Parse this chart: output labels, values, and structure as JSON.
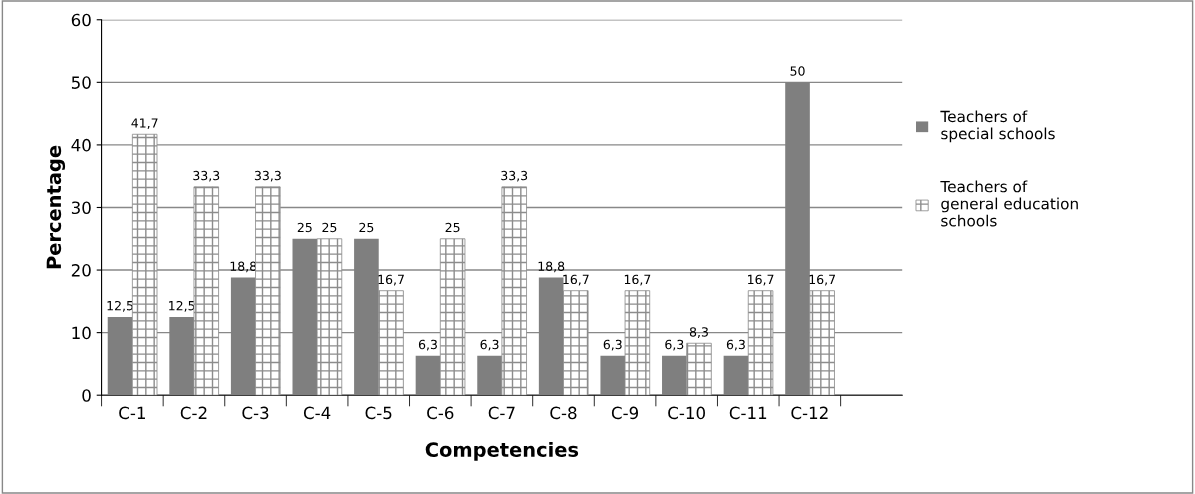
{
  "chart_data": {
    "type": "bar",
    "xlabel": "Competencies",
    "ylabel": "Percentage",
    "categories": [
      "C-1",
      "C-2",
      "C-3",
      "C-4",
      "C-5",
      "C-6",
      "C-7",
      "C-8",
      "C-9",
      "C-10",
      "C-11",
      "C-12"
    ],
    "series": [
      {
        "name": "Teachers of special schools",
        "color": "#7f7f7f",
        "values": [
          12.5,
          12.5,
          18.8,
          25,
          25,
          6.3,
          6.3,
          18.8,
          6.3,
          6.3,
          6.3,
          50
        ],
        "value_labels": [
          "12,5",
          "12,5",
          "18,8",
          "25",
          "25",
          "6,3",
          "6,3",
          "18,8",
          "6,3",
          "6,3",
          "6,3",
          "50"
        ]
      },
      {
        "name": "Teachers of general education schools",
        "color": "#8c8c8c",
        "values": [
          41.7,
          33.3,
          33.3,
          25,
          16.7,
          25,
          33.3,
          16.7,
          16.7,
          8.3,
          16.7,
          16.7
        ],
        "value_labels": [
          "41,7",
          "33,3",
          "33,3",
          "25",
          "16,7",
          "25",
          "33,3",
          "16,7",
          "16,7",
          "8,3",
          "16,7",
          "16,7"
        ]
      }
    ],
    "ylim": [
      0,
      60
    ],
    "yticks": [
      0,
      10,
      20,
      30,
      40,
      50,
      60
    ],
    "grid": "y",
    "legend": "right"
  }
}
